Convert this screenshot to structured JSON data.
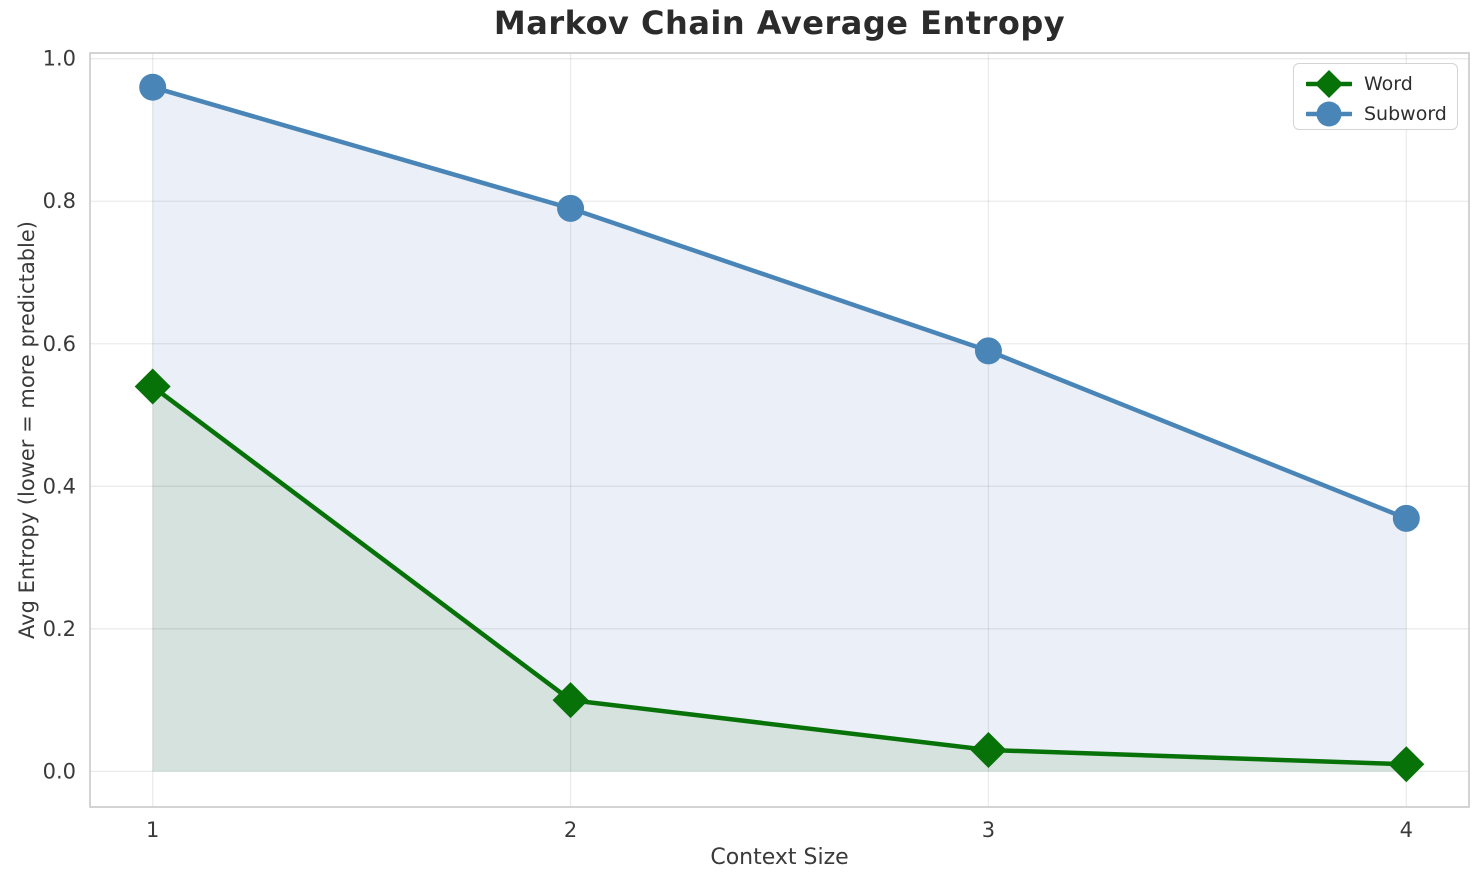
{
  "chart_data": {
    "type": "line",
    "title": "Markov Chain Average Entropy",
    "xlabel": "Context Size",
    "ylabel": "Avg Entropy (lower = more predictable)",
    "x": [
      1,
      2,
      3,
      4
    ],
    "series": [
      {
        "name": "Word",
        "values": [
          0.54,
          0.1,
          0.03,
          0.01
        ],
        "color": "#077208",
        "fill_color": "#d5e2de",
        "marker": "diamond"
      },
      {
        "name": "Subword",
        "values": [
          0.96,
          0.79,
          0.59,
          0.355
        ],
        "color": "#4a85b8",
        "fill_color": "#ebeff8",
        "marker": "circle"
      }
    ],
    "xtick_values": [
      1,
      2,
      3,
      4
    ],
    "xtick_labels": [
      "1",
      "2",
      "3",
      "4"
    ],
    "ytick_values": [
      0.0,
      0.2,
      0.4,
      0.6,
      0.8,
      1.0
    ],
    "ytick_labels": [
      "0.0",
      "0.2",
      "0.4",
      "0.6",
      "0.8",
      "1.0"
    ],
    "xlim": [
      0.85,
      4.15
    ],
    "ylim": [
      -0.05,
      1.008
    ],
    "grid": true,
    "fill_baseline": 0,
    "legend_position": "upper right",
    "style": {
      "grid_color": "rgba(0,0,0,0.08)",
      "spine_color": "#c9c9c9",
      "tick_label_color": "#3a3a3a",
      "title_color": "#2b2b2b"
    }
  }
}
